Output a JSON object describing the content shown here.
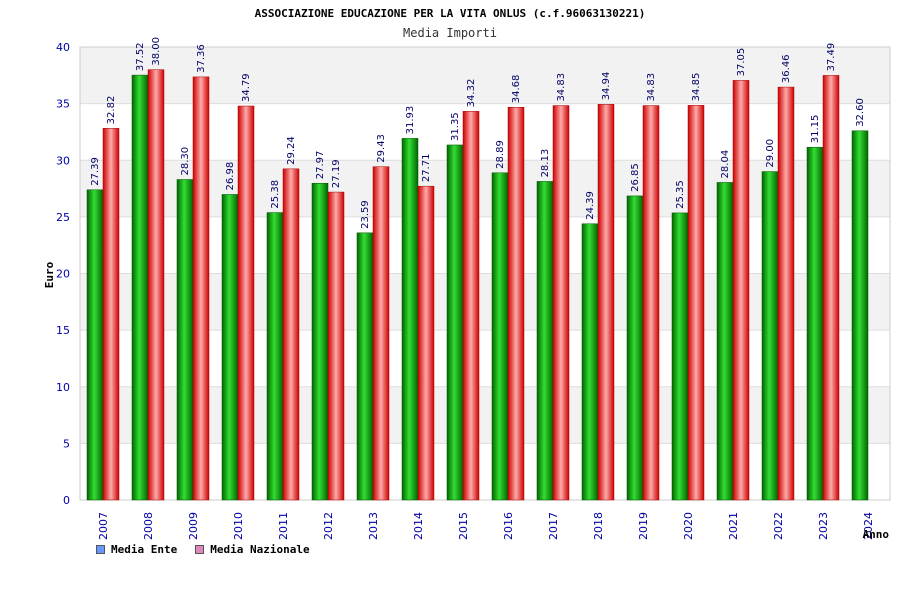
{
  "chart_data": {
    "type": "bar",
    "title": "ASSOCIAZIONE EDUCAZIONE PER LA VITA ONLUS (c.f.96063130221)",
    "subtitle": "Media Importi",
    "xlabel": "Anno",
    "ylabel": "Euro",
    "ylim": [
      0,
      40
    ],
    "yticks": [
      0,
      5,
      10,
      15,
      20,
      25,
      30,
      35,
      40
    ],
    "grid": true,
    "legend_position": "bottom-left",
    "categories": [
      "2007",
      "2008",
      "2009",
      "2010",
      "2011",
      "2012",
      "2013",
      "2014",
      "2015",
      "2016",
      "2017",
      "2018",
      "2019",
      "2020",
      "2021",
      "2022",
      "2023",
      "2024"
    ],
    "series": [
      {
        "name": "Media Ente",
        "color": "#00b000",
        "legend_color": "#6699ff",
        "values": [
          27.39,
          37.52,
          28.3,
          26.98,
          25.38,
          27.97,
          23.59,
          31.93,
          31.35,
          28.89,
          28.13,
          24.39,
          26.85,
          25.35,
          28.04,
          29.0,
          31.15,
          32.6
        ],
        "labels": [
          "27.39",
          "37.52",
          "28.30",
          "26.98",
          "25.38",
          "27.97",
          "23.59",
          "31.93",
          "31.35",
          "28.89",
          "28.13",
          "24.39",
          "26.85",
          "25.35",
          "28.04",
          "29.00",
          "31.15",
          "32.60"
        ]
      },
      {
        "name": "Media Nazionale",
        "color": "#ee2222",
        "legend_color": "#dd88bb",
        "values": [
          32.82,
          38.0,
          37.36,
          34.79,
          29.24,
          27.19,
          29.43,
          27.71,
          34.32,
          34.68,
          34.83,
          34.94,
          34.83,
          34.85,
          37.05,
          36.46,
          37.49,
          null
        ],
        "labels": [
          "32.82",
          "38.00",
          "37.36",
          "34.79",
          "29.24",
          "27.19",
          "29.43",
          "27.71",
          "34.32",
          "34.68",
          "34.83",
          "34.94",
          "34.83",
          "34.85",
          "37.05",
          "36.46",
          "37.49",
          null
        ]
      }
    ]
  }
}
